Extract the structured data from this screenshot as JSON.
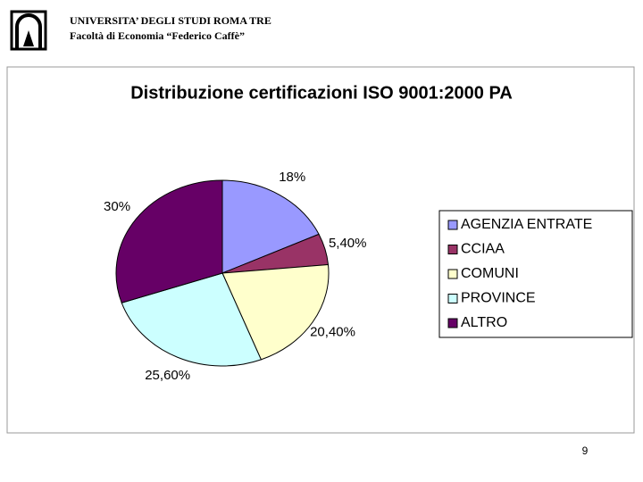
{
  "header": {
    "line1": "UNIVERSITA’ DEGLI STUDI ROMA TRE",
    "line2": "Facoltà di Economia “Federico Caffè”"
  },
  "page_number": "9",
  "chart_data": {
    "type": "pie",
    "title": "Distribuzione certificazioni ISO 9001:2000 PA",
    "categories": [
      "AGENZIA  ENTRATE",
      "CCIAA",
      "COMUNI",
      "PROVINCE",
      "ALTRO"
    ],
    "values": [
      18,
      5.4,
      20.4,
      25.6,
      30
    ],
    "value_labels": [
      "18%",
      "5,40%",
      "20,40%",
      "25,60%",
      "30%"
    ],
    "colors": [
      "#9999ff",
      "#993366",
      "#ffffcc",
      "#ccffff",
      "#660066"
    ],
    "legend": "right"
  }
}
